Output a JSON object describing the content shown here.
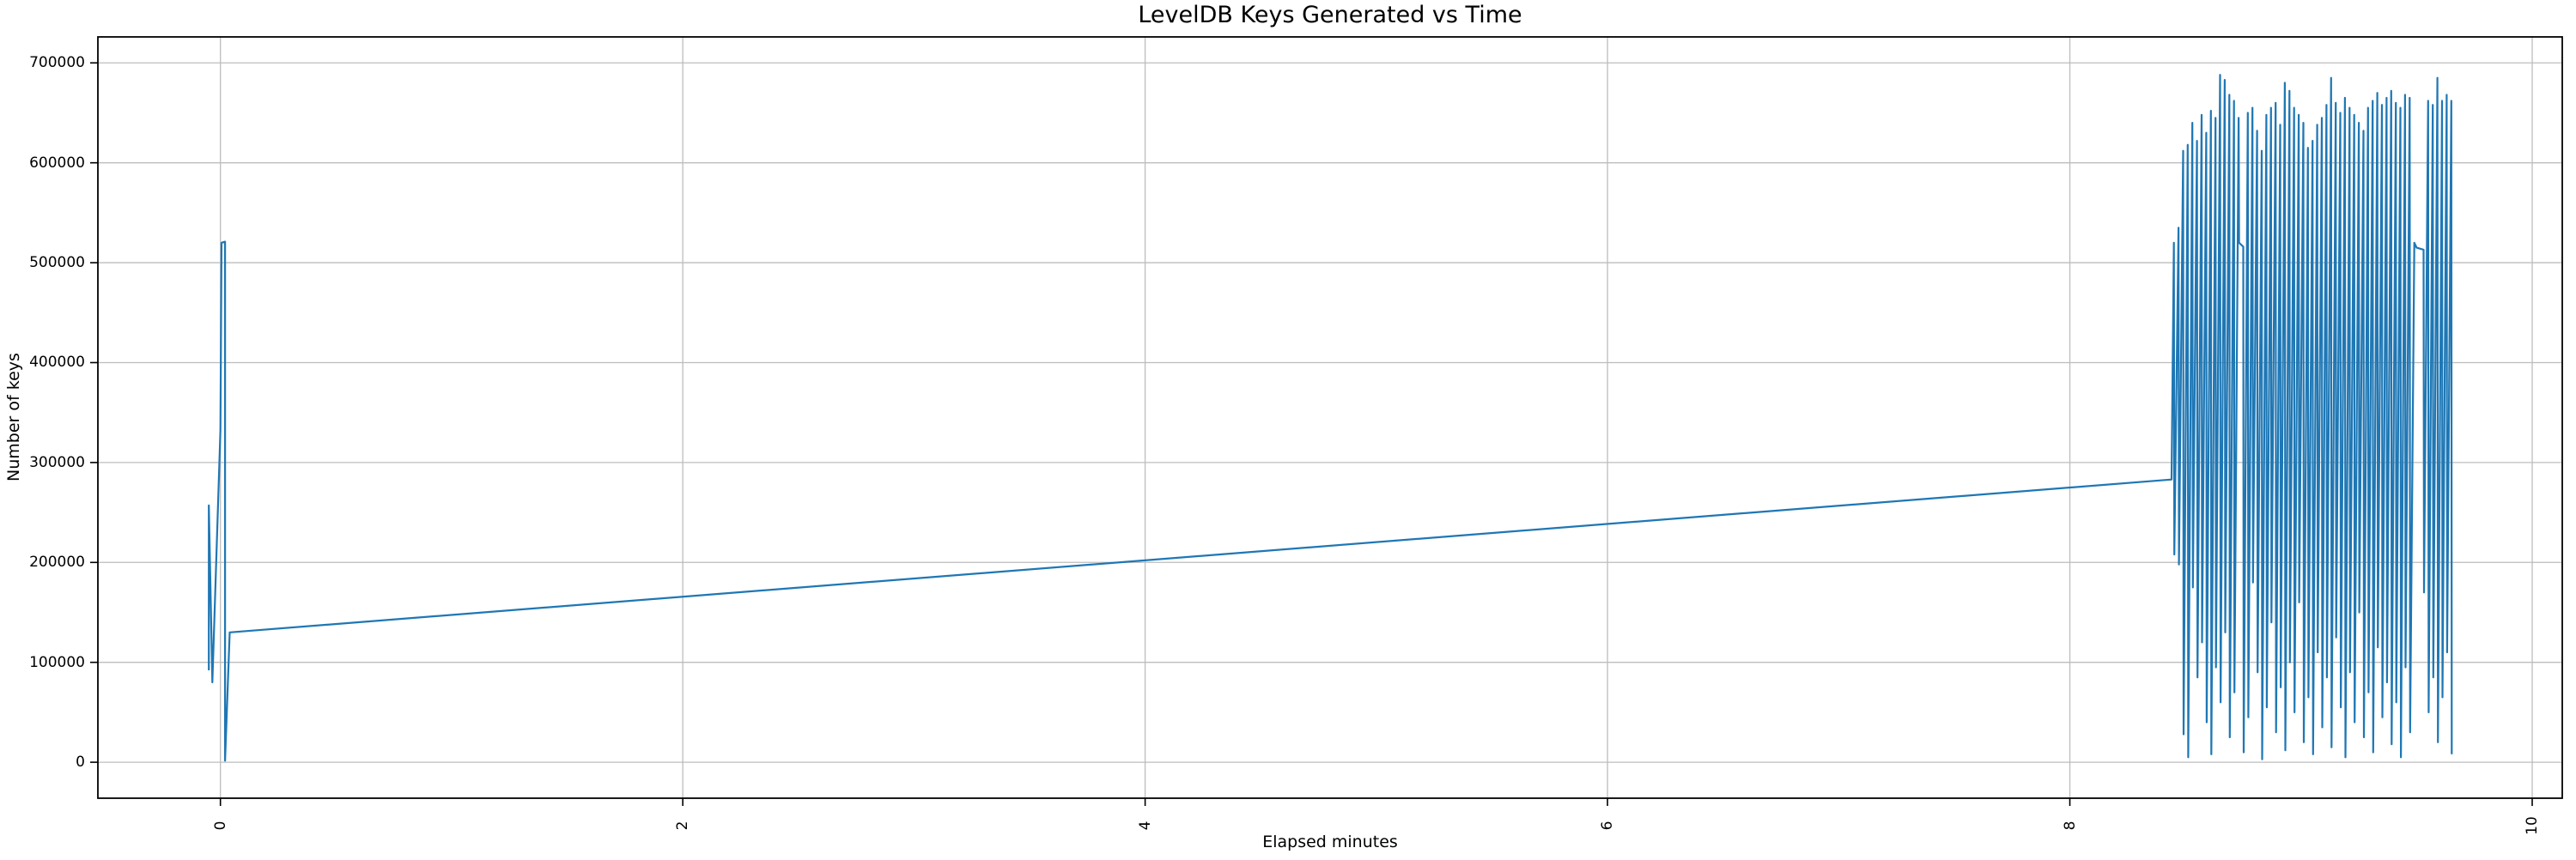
{
  "chart_data": {
    "type": "line",
    "title": "LevelDB Keys Generated vs Time",
    "xlabel": "Elapsed minutes",
    "ylabel": "Number of keys",
    "xlim": [
      -0.53,
      10.13
    ],
    "ylim": [
      -36000,
      726000
    ],
    "x_ticks": [
      0,
      2,
      4,
      6,
      8,
      10
    ],
    "y_ticks": [
      0,
      100000,
      200000,
      300000,
      400000,
      500000,
      600000,
      700000
    ],
    "grid": true,
    "legend": false,
    "colors": {
      "line": "#1f77b4",
      "grid": "#bdbdbd",
      "spine": "#000000",
      "background": "#ffffff"
    },
    "series": [
      {
        "name": "keys",
        "points": [
          [
            -0.05,
            92000
          ],
          [
            -0.05,
            257000
          ],
          [
            -0.035,
            80000
          ],
          [
            0.0,
            332000
          ],
          [
            0.005,
            520000
          ],
          [
            0.02,
            521000
          ],
          [
            0.02,
            1500
          ],
          [
            0.04,
            130000
          ],
          [
            8.44,
            283000
          ],
          [
            8.45,
            520000
          ],
          [
            8.452,
            208000
          ],
          [
            8.47,
            535000
          ],
          [
            8.472,
            198000
          ],
          [
            8.49,
            612000
          ],
          [
            8.492,
            28000
          ],
          [
            8.51,
            618000
          ],
          [
            8.512,
            5000
          ],
          [
            8.53,
            640000
          ],
          [
            8.532,
            175000
          ],
          [
            8.55,
            622000
          ],
          [
            8.552,
            85000
          ],
          [
            8.57,
            648000
          ],
          [
            8.572,
            120000
          ],
          [
            8.59,
            630000
          ],
          [
            8.592,
            40000
          ],
          [
            8.61,
            652000
          ],
          [
            8.612,
            8000
          ],
          [
            8.63,
            645000
          ],
          [
            8.632,
            95000
          ],
          [
            8.65,
            688000
          ],
          [
            8.652,
            60000
          ],
          [
            8.67,
            683000
          ],
          [
            8.672,
            130000
          ],
          [
            8.69,
            668000
          ],
          [
            8.692,
            25000
          ],
          [
            8.71,
            662000
          ],
          [
            8.712,
            70000
          ],
          [
            8.73,
            645000
          ],
          [
            8.732,
            520000
          ],
          [
            8.75,
            516000
          ],
          [
            8.752,
            10000
          ],
          [
            8.77,
            650000
          ],
          [
            8.772,
            45000
          ],
          [
            8.79,
            655000
          ],
          [
            8.792,
            180000
          ],
          [
            8.81,
            632000
          ],
          [
            8.812,
            90000
          ],
          [
            8.83,
            612000
          ],
          [
            8.832,
            3000
          ],
          [
            8.85,
            648000
          ],
          [
            8.852,
            55000
          ],
          [
            8.87,
            655000
          ],
          [
            8.872,
            140000
          ],
          [
            8.89,
            660000
          ],
          [
            8.892,
            30000
          ],
          [
            8.91,
            638000
          ],
          [
            8.912,
            75000
          ],
          [
            8.93,
            680000
          ],
          [
            8.932,
            12000
          ],
          [
            8.95,
            672000
          ],
          [
            8.952,
            100000
          ],
          [
            8.97,
            655000
          ],
          [
            8.972,
            50000
          ],
          [
            8.99,
            648000
          ],
          [
            8.992,
            160000
          ],
          [
            9.01,
            640000
          ],
          [
            9.012,
            20000
          ],
          [
            9.03,
            615000
          ],
          [
            9.032,
            65000
          ],
          [
            9.05,
            622000
          ],
          [
            9.052,
            8000
          ],
          [
            9.07,
            638000
          ],
          [
            9.072,
            110000
          ],
          [
            9.09,
            645000
          ],
          [
            9.092,
            35000
          ],
          [
            9.11,
            658000
          ],
          [
            9.112,
            85000
          ],
          [
            9.13,
            685000
          ],
          [
            9.132,
            15000
          ],
          [
            9.15,
            660000
          ],
          [
            9.152,
            125000
          ],
          [
            9.17,
            650000
          ],
          [
            9.172,
            55000
          ],
          [
            9.19,
            665000
          ],
          [
            9.192,
            5000
          ],
          [
            9.21,
            655000
          ],
          [
            9.212,
            90000
          ],
          [
            9.23,
            648000
          ],
          [
            9.232,
            40000
          ],
          [
            9.25,
            640000
          ],
          [
            9.252,
            150000
          ],
          [
            9.27,
            632000
          ],
          [
            9.272,
            25000
          ],
          [
            9.29,
            655000
          ],
          [
            9.292,
            70000
          ],
          [
            9.31,
            662000
          ],
          [
            9.312,
            10000
          ],
          [
            9.33,
            670000
          ],
          [
            9.332,
            115000
          ],
          [
            9.35,
            658000
          ],
          [
            9.352,
            45000
          ],
          [
            9.37,
            665000
          ],
          [
            9.372,
            80000
          ],
          [
            9.39,
            672000
          ],
          [
            9.392,
            18000
          ],
          [
            9.41,
            660000
          ],
          [
            9.412,
            60000
          ],
          [
            9.43,
            655000
          ],
          [
            9.432,
            5000
          ],
          [
            9.45,
            668000
          ],
          [
            9.452,
            95000
          ],
          [
            9.47,
            665000
          ],
          [
            9.472,
            30000
          ],
          [
            9.49,
            520000
          ],
          [
            9.5,
            515000
          ],
          [
            9.53,
            513000
          ],
          [
            9.532,
            170000
          ],
          [
            9.55,
            662000
          ],
          [
            9.552,
            50000
          ],
          [
            9.57,
            658000
          ],
          [
            9.572,
            85000
          ],
          [
            9.59,
            685000
          ],
          [
            9.592,
            20000
          ],
          [
            9.61,
            662000
          ],
          [
            9.612,
            65000
          ],
          [
            9.63,
            668000
          ],
          [
            9.632,
            110000
          ],
          [
            9.65,
            662000
          ],
          [
            9.652,
            8000
          ]
        ]
      }
    ]
  }
}
